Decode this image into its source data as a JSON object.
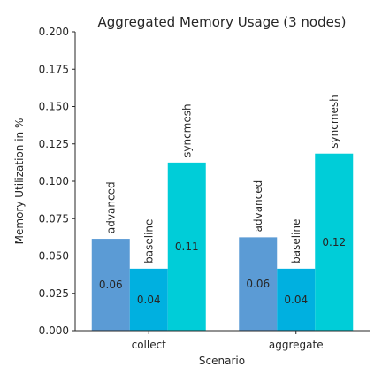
{
  "chart_data": {
    "type": "bar",
    "title": "Aggregated Memory Usage (3 nodes)",
    "xlabel": "Scenario",
    "ylabel": "Memory Utilization in %",
    "categories": [
      "collect",
      "aggregate"
    ],
    "series": [
      {
        "name": "advanced",
        "values": [
          0.0615,
          0.0625
        ],
        "value_labels": [
          "0.06",
          "0.06"
        ],
        "color": "#5b9bd5"
      },
      {
        "name": "baseline",
        "values": [
          0.0415,
          0.0415
        ],
        "value_labels": [
          "0.04",
          "0.04"
        ],
        "color": "#00b0e0"
      },
      {
        "name": "syncmesh",
        "values": [
          0.1125,
          0.1185
        ],
        "value_labels": [
          "0.11",
          "0.12"
        ],
        "color": "#00cdd8"
      }
    ],
    "ylim": [
      0,
      0.2
    ],
    "yticks": [
      "0.000",
      "0.025",
      "0.050",
      "0.075",
      "0.100",
      "0.125",
      "0.150",
      "0.175",
      "0.200"
    ],
    "grid": false,
    "legend": "none"
  }
}
